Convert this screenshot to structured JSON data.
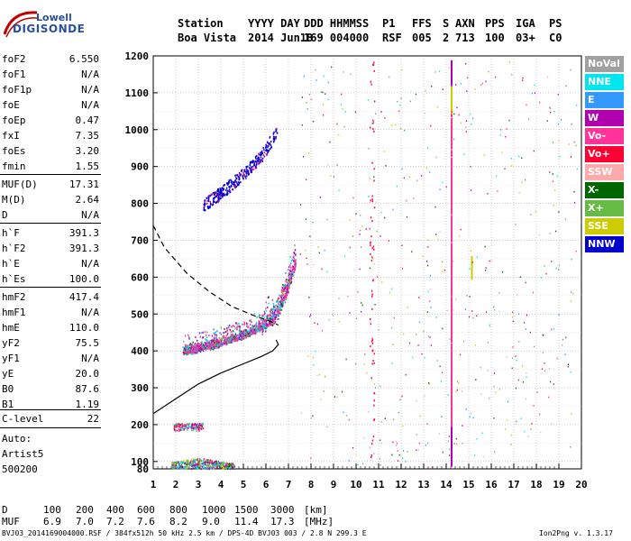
{
  "logo": {
    "line1": "Lowell",
    "line2": "DIGISONDE"
  },
  "header": {
    "labels": [
      "Station",
      "YYYY DAY",
      "DDD HHMMSS",
      "P1",
      "FFS",
      "S",
      "AXN",
      "PPS",
      "IGA",
      "PS"
    ],
    "values": [
      "Boa Vista",
      "2014 Jun18",
      "169 004000",
      "RSF",
      "005",
      "2",
      "713",
      "100",
      "03+",
      "C0"
    ]
  },
  "params": [
    {
      "k": "foF2",
      "v": "6.550"
    },
    {
      "k": "foF1",
      "v": "N/A"
    },
    {
      "k": "foF1p",
      "v": "N/A"
    },
    {
      "k": "foE",
      "v": "N/A"
    },
    {
      "k": "foEp",
      "v": "0.47"
    },
    {
      "k": "fxI",
      "v": "7.35"
    },
    {
      "k": "foEs",
      "v": "3.20"
    },
    {
      "k": "fmin",
      "v": "1.55"
    },
    {
      "k": "MUF(D)",
      "v": "17.31"
    },
    {
      "k": "M(D)",
      "v": "2.64"
    },
    {
      "k": "D",
      "v": "N/A"
    },
    {
      "k": "h`F",
      "v": "391.3"
    },
    {
      "k": "h`F2",
      "v": "391.3"
    },
    {
      "k": "h`E",
      "v": "N/A"
    },
    {
      "k": "h`Es",
      "v": "100.0"
    },
    {
      "k": "hmF2",
      "v": "417.4"
    },
    {
      "k": "hmF1",
      "v": "N/A"
    },
    {
      "k": "hmE",
      "v": "110.0"
    },
    {
      "k": "yF2",
      "v": "75.5"
    },
    {
      "k": "yF1",
      "v": "N/A"
    },
    {
      "k": "yE",
      "v": "20.0"
    },
    {
      "k": "B0",
      "v": "87.6"
    },
    {
      "k": "B1",
      "v": "1.19"
    },
    {
      "k": "C-level",
      "v": "22"
    }
  ],
  "auto": {
    "line1": "Auto:",
    "line2": "Artist5",
    "line3": "500200"
  },
  "legend": [
    {
      "label": "NoVal",
      "color": "#a0a0a0"
    },
    {
      "label": "NNE",
      "color": "#00e5ee"
    },
    {
      "label": "E",
      "color": "#3399ff"
    },
    {
      "label": "W",
      "color": "#b000b0"
    },
    {
      "label": "Vo-",
      "color": "#ff3399"
    },
    {
      "label": "Vo+",
      "color": "#ff0033"
    },
    {
      "label": "SSW",
      "color": "#ffaaaa"
    },
    {
      "label": "X-",
      "color": "#006600"
    },
    {
      "label": "X+",
      "color": "#66bb44"
    },
    {
      "label": "SSE",
      "color": "#cccc00"
    },
    {
      "label": "NNW",
      "color": "#0000cc"
    }
  ],
  "muf_table": {
    "d_label": "D",
    "d_values": [
      "100",
      "200",
      "400",
      "600",
      "800",
      "1000",
      "1500",
      "3000"
    ],
    "d_unit": "[km]",
    "muf_label": "MUF",
    "muf_values": [
      "6.9",
      "7.0",
      "7.2",
      "7.6",
      "8.2",
      "9.0",
      "11.4",
      "17.3"
    ],
    "muf_unit": "[MHz]"
  },
  "footer": {
    "left": "BVJ03_2014169004000.RSF / 384fx512h 50 kHz 2.5 km / DPS-4D BVJ03 003 / 2.8 N 299.3 E",
    "right": "Ion2Png v. 1.3.17"
  },
  "chart_data": {
    "type": "scatter",
    "xlim": [
      1,
      20
    ],
    "ylim": [
      80,
      1200
    ],
    "x_ticks": [
      "1",
      "2",
      "3",
      "4",
      "5",
      "6",
      "7",
      "8",
      "9",
      "10",
      "11",
      "12",
      "13",
      "14",
      "15",
      "16",
      "17",
      "18",
      "19",
      "20"
    ],
    "y_ticks": [
      "80",
      "100",
      "200",
      "300",
      "400",
      "500",
      "600",
      "700",
      "800",
      "900",
      "1000",
      "1100",
      "1200"
    ],
    "grid": true,
    "legend_placement": "right",
    "traces": {
      "es_layer": {
        "x": [
          1.9,
          3.2
        ],
        "y": [
          195,
          205
        ]
      },
      "e_layer": {
        "x": [
          1.8,
          4.6
        ],
        "y": [
          82,
          110
        ]
      },
      "f_trace": [
        [
          2.3,
          395
        ],
        [
          3.0,
          405
        ],
        [
          4.0,
          420
        ],
        [
          5.0,
          440
        ],
        [
          6.0,
          470
        ],
        [
          6.5,
          500
        ],
        [
          6.9,
          560
        ],
        [
          7.3,
          640
        ]
      ],
      "multihop": [
        [
          3.2,
          795
        ],
        [
          4.0,
          830
        ],
        [
          5.0,
          880
        ],
        [
          5.8,
          930
        ],
        [
          6.5,
          1000
        ]
      ],
      "profile_solid": [
        [
          1.0,
          230
        ],
        [
          2.0,
          270
        ],
        [
          3.0,
          310
        ],
        [
          4.0,
          340
        ],
        [
          5.0,
          365
        ],
        [
          5.8,
          385
        ],
        [
          6.3,
          400
        ],
        [
          6.55,
          417
        ],
        [
          6.45,
          430
        ]
      ],
      "profile_dashed": [
        [
          1.0,
          740
        ],
        [
          1.5,
          680
        ],
        [
          2.5,
          610
        ],
        [
          3.5,
          560
        ],
        [
          4.5,
          520
        ],
        [
          5.5,
          495
        ],
        [
          6.2,
          480
        ],
        [
          6.55,
          470
        ]
      ]
    }
  }
}
